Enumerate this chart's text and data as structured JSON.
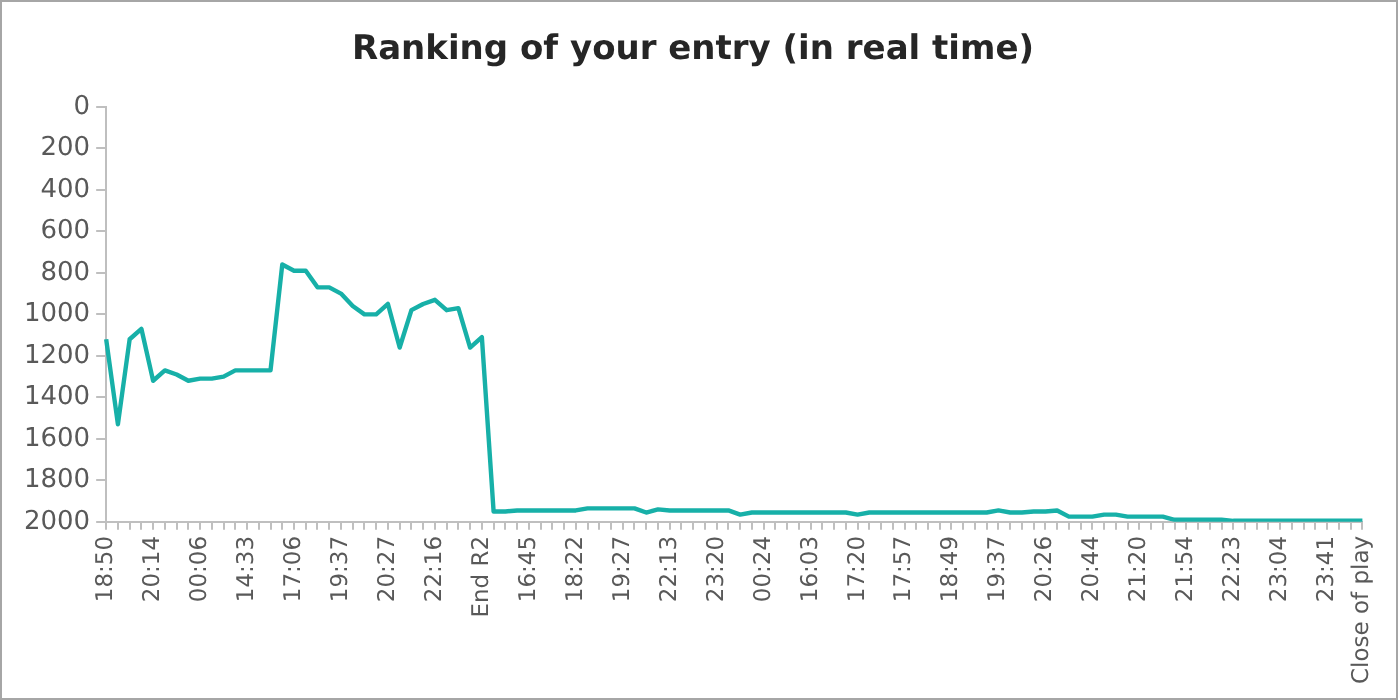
{
  "chart_data": {
    "type": "line",
    "title": "Ranking of your entry (in real time)",
    "categories": [
      "18:50",
      null,
      null,
      null,
      "20:14",
      null,
      null,
      null,
      "00:06",
      null,
      null,
      null,
      "14:33",
      null,
      null,
      null,
      "17:06",
      null,
      null,
      null,
      "19:37",
      null,
      null,
      null,
      "20:27",
      null,
      null,
      null,
      "22:16",
      null,
      null,
      null,
      "End R2",
      null,
      null,
      null,
      "16:45",
      null,
      null,
      null,
      "18:22",
      null,
      null,
      null,
      "19:27",
      null,
      null,
      null,
      "22:13",
      null,
      null,
      null,
      "23:20",
      null,
      null,
      null,
      "00:24",
      null,
      null,
      null,
      "16:03",
      null,
      null,
      null,
      "17:20",
      null,
      null,
      null,
      "17:57",
      null,
      null,
      null,
      "18:49",
      null,
      null,
      null,
      "19:37",
      null,
      null,
      null,
      "20:26",
      null,
      null,
      null,
      "20:44",
      null,
      null,
      null,
      "21:20",
      null,
      null,
      null,
      "21:54",
      null,
      null,
      null,
      "22:23",
      null,
      null,
      null,
      "23:04",
      null,
      null,
      null,
      "23:41",
      null,
      null,
      "Close of play"
    ],
    "series": [
      {
        "color": "#17b0a8",
        "values": [
          1120,
          1530,
          1120,
          1070,
          1320,
          1270,
          1290,
          1320,
          1310,
          1310,
          1300,
          1270,
          1270,
          1270,
          1270,
          760,
          790,
          790,
          870,
          870,
          900,
          960,
          1000,
          1000,
          950,
          1160,
          980,
          950,
          930,
          980,
          970,
          1160,
          1110,
          1950,
          1950,
          1945,
          1945,
          1945,
          1945,
          1945,
          1945,
          1935,
          1935,
          1935,
          1935,
          1935,
          1955,
          1940,
          1945,
          1945,
          1945,
          1945,
          1945,
          1945,
          1965,
          1955,
          1955,
          1955,
          1955,
          1955,
          1955,
          1955,
          1955,
          1955,
          1965,
          1955,
          1955,
          1955,
          1955,
          1955,
          1955,
          1955,
          1955,
          1955,
          1955,
          1955,
          1945,
          1955,
          1955,
          1950,
          1950,
          1945,
          1975,
          1975,
          1975,
          1965,
          1965,
          1975,
          1975,
          1975,
          1975,
          1990,
          1990,
          1990,
          1990,
          1990,
          1995,
          1995,
          1995,
          1995,
          1995,
          1995,
          1995,
          1995,
          1995,
          1995,
          1995,
          1995
        ]
      }
    ],
    "ylim": [
      2000,
      0
    ],
    "yticks": [
      0,
      200,
      400,
      600,
      800,
      1000,
      1200,
      1400,
      1600,
      1800,
      2000
    ],
    "grid": false,
    "legend": false,
    "marker": "none"
  }
}
